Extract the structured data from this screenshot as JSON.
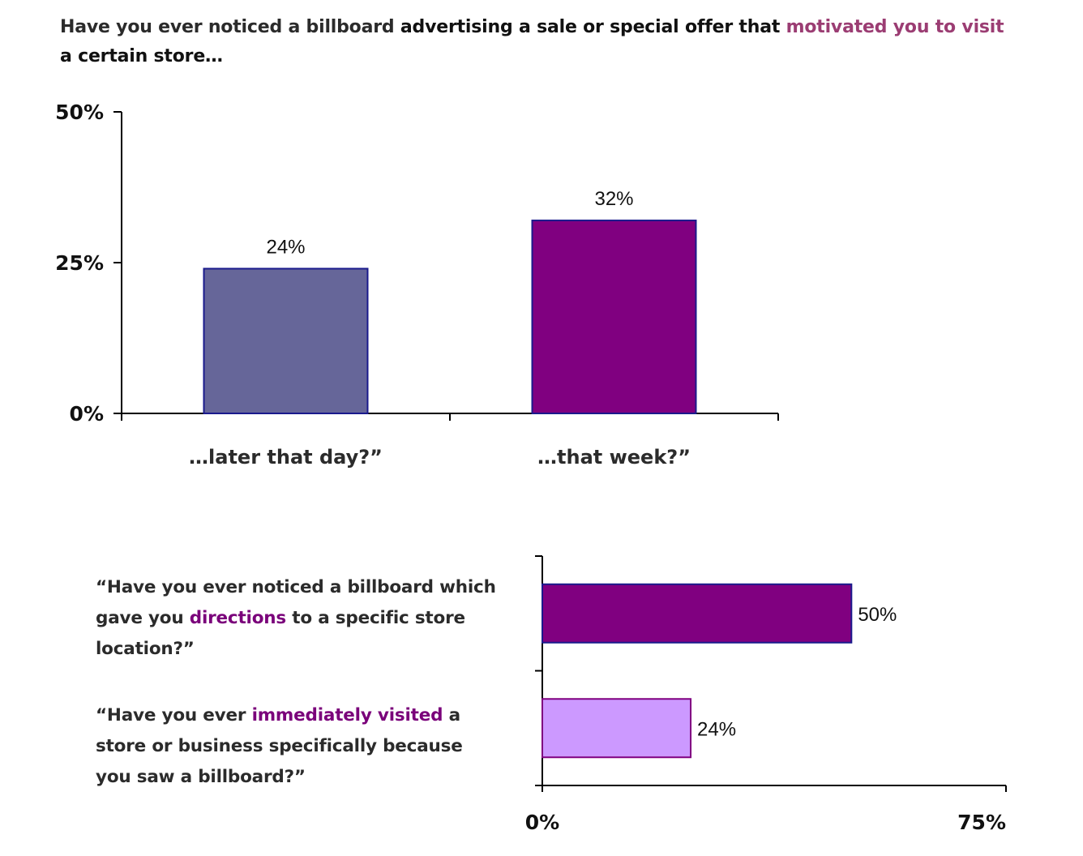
{
  "heading": {
    "part1": "Have you ever noticed a billboard ",
    "part2": "advertising a sale or special offer that ",
    "part3": "motivated you to visit",
    "part4": " a certain store…"
  },
  "questions": [
    {
      "before": "“Have you ever noticed a billboard which gave you ",
      "highlight": "directions",
      "after": " to a specific store location?”"
    },
    {
      "before": "“Have you ever ",
      "highlight": "immediately visited",
      "after": " a store or business specifically because you saw a billboard?”"
    }
  ],
  "colors": {
    "later_that_day": "#666699",
    "that_week": "#800080",
    "directions": "#800080",
    "immediately_visited": "#cc99ff",
    "bar_border": "#1a1a8c",
    "axis": "#000000"
  },
  "chart_data": [
    {
      "type": "bar",
      "orientation": "vertical",
      "categories": [
        "…later that day?”",
        "…that week?”"
      ],
      "values": [
        24,
        32
      ],
      "value_labels": [
        "24%",
        "32%"
      ],
      "yticks": [
        "0%",
        "25%",
        "50%"
      ],
      "ylim": [
        0,
        50
      ],
      "grid": false
    },
    {
      "type": "bar",
      "orientation": "horizontal",
      "categories": [
        "directions",
        "immediately visited"
      ],
      "values": [
        50,
        24
      ],
      "value_labels": [
        "50%",
        "24%"
      ],
      "xticks": [
        "0%",
        "75%"
      ],
      "xlim": [
        0,
        75
      ],
      "grid": false
    }
  ]
}
